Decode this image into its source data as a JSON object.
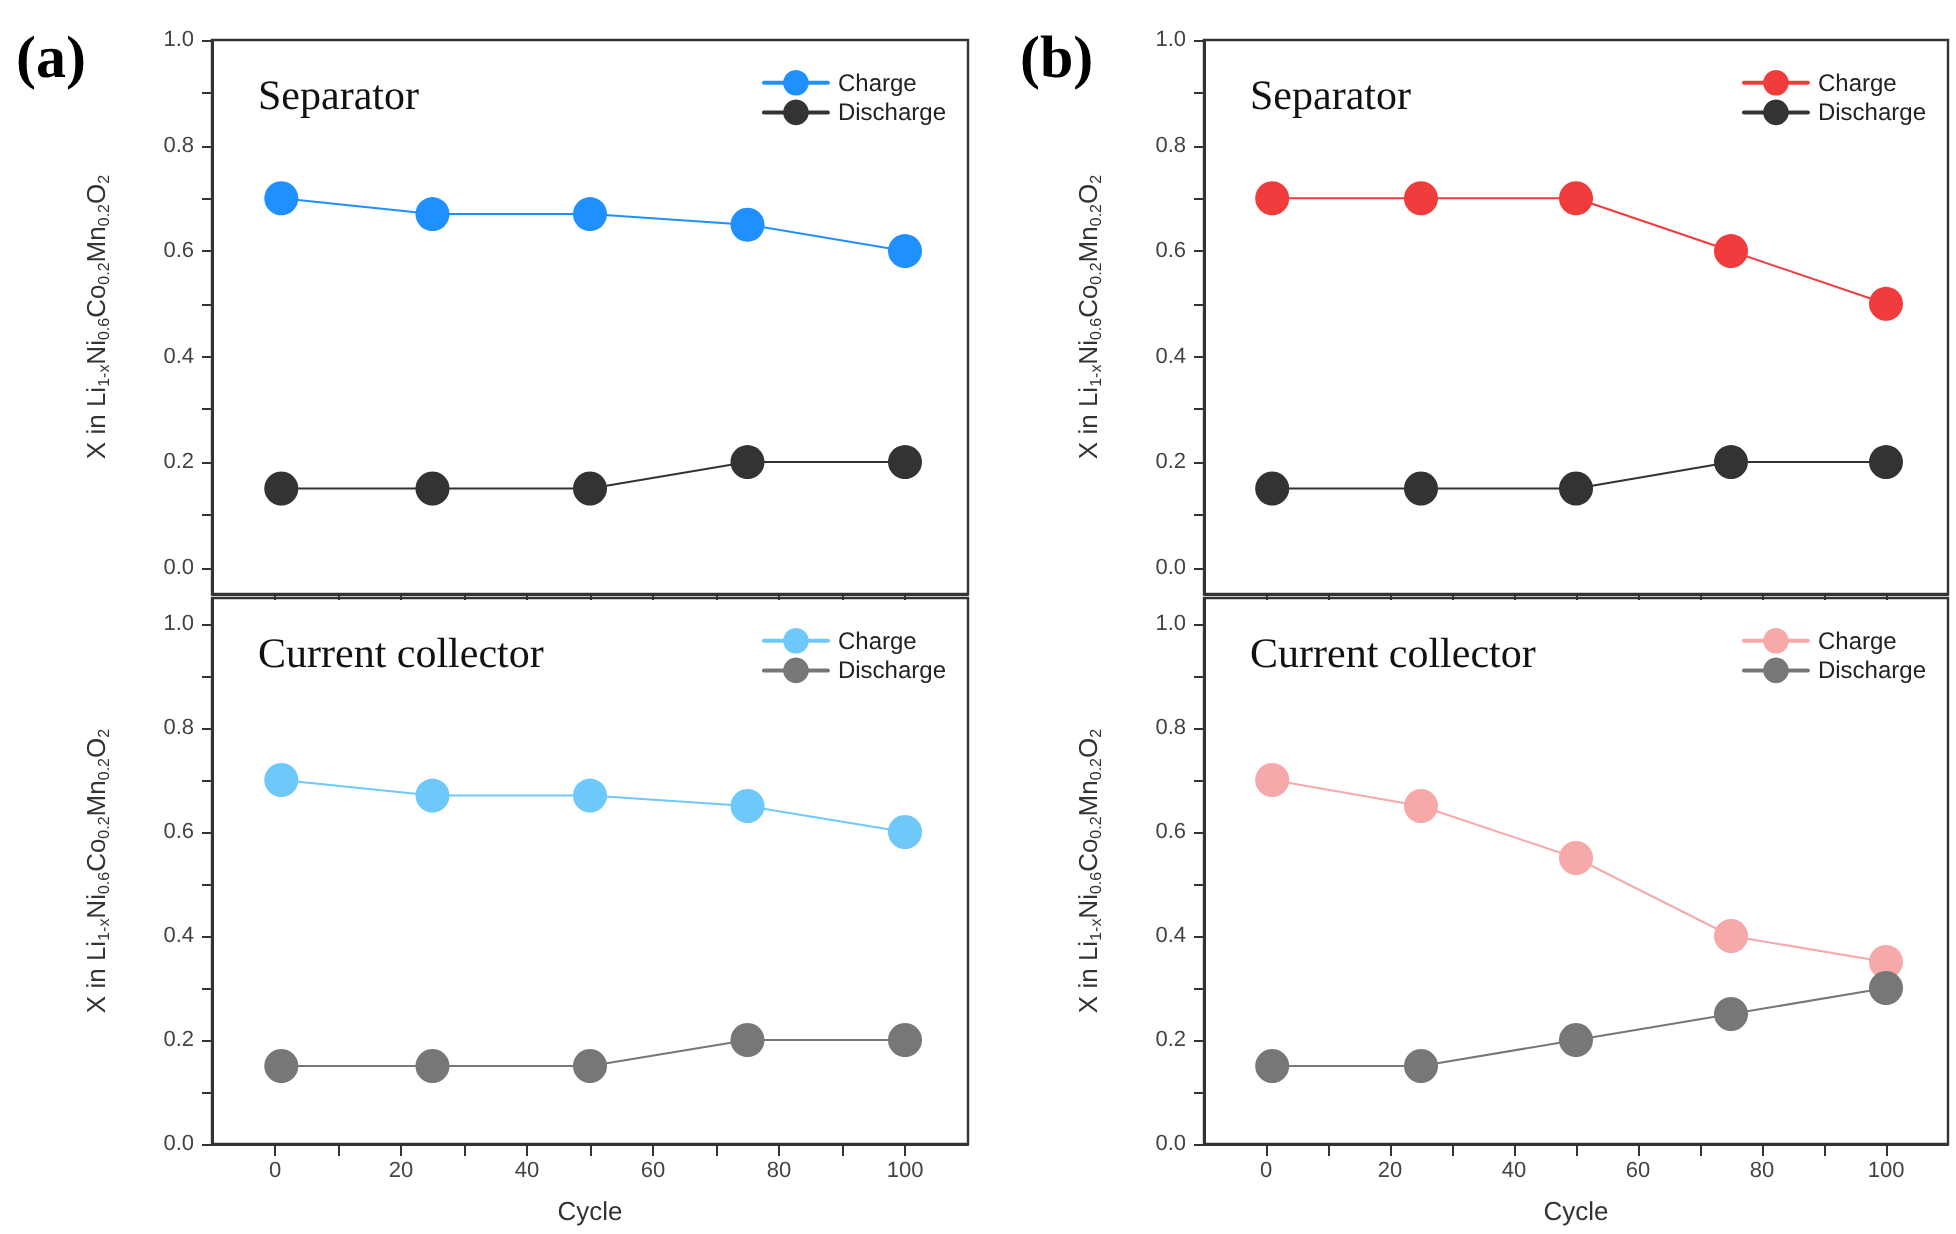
{
  "chart_data": [
    {
      "type": "line",
      "title": "Separator",
      "annotations": [
        "(a)"
      ],
      "ylabel": "X in Li$_{1-x}$Ni$_{0.6}$Co$_{0.2}$Mn$_{0.2}$O$_{2}$",
      "x": [
        1,
        25,
        50,
        75,
        100
      ],
      "xlim": [
        -10,
        110
      ],
      "xticks": [
        0,
        {
          "value": 10,
          "label": null
        },
        20,
        {
          "value": 30,
          "label": null
        },
        40,
        {
          "value": 50,
          "label": null
        },
        60,
        {
          "value": 70,
          "label": null
        },
        80,
        {
          "value": 90,
          "label": null
        },
        100
      ],
      "ylim": [
        -0.05,
        1.0
      ],
      "yticks": [
        {
          "value": 0,
          "label": "0.0"
        },
        {
          "value": 0.1,
          "label": null
        },
        0.2,
        {
          "value": 0.3,
          "label": null
        },
        0.4,
        {
          "value": 0.5,
          "label": null
        },
        0.6,
        {
          "value": 0.7,
          "label": null
        },
        0.8,
        {
          "value": 0.9,
          "label": null
        },
        {
          "value": 1,
          "label": "1.0"
        }
      ],
      "tick_labels": "y",
      "legend": "top right",
      "marker": "circle",
      "line_style": "solid",
      "grid": false,
      "series": [
        {
          "name": "Charge",
          "color": "#1e90ff",
          "values": [
            0.7,
            0.67,
            0.67,
            0.65,
            0.6
          ]
        },
        {
          "name": "Discharge",
          "color": "#333333",
          "values": [
            0.15,
            0.15,
            0.15,
            0.2,
            0.2
          ]
        }
      ]
    },
    {
      "type": "line",
      "title": "Current collector",
      "xlabel": "Cycle",
      "ylabel": "X in Li$_{1-x}$Ni$_{0.6}$Co$_{0.2}$Mn$_{0.2}$O$_{2}$",
      "x": [
        1,
        25,
        50,
        75,
        100
      ],
      "xlim": [
        -10,
        110
      ],
      "xticks": [
        0,
        {
          "value": 10,
          "label": null
        },
        20,
        {
          "value": 30,
          "label": null
        },
        40,
        {
          "value": 50,
          "label": null
        },
        60,
        {
          "value": 70,
          "label": null
        },
        80,
        {
          "value": 90,
          "label": null
        },
        100
      ],
      "ylim": [
        0,
        1.05
      ],
      "yticks": [
        {
          "value": 0,
          "label": "0.0"
        },
        {
          "value": 0.1,
          "label": null
        },
        0.2,
        {
          "value": 0.3,
          "label": null
        },
        0.4,
        {
          "value": 0.5,
          "label": null
        },
        0.6,
        {
          "value": 0.7,
          "label": null
        },
        0.8,
        {
          "value": 0.9,
          "label": null
        },
        {
          "value": 1,
          "label": "1.0"
        }
      ],
      "legend": "top right",
      "marker": "circle",
      "line_style": "solid",
      "grid": false,
      "series": [
        {
          "name": "Charge",
          "color": "#6ec8fa",
          "values": [
            0.7,
            0.67,
            0.67,
            0.65,
            0.6
          ]
        },
        {
          "name": "Discharge",
          "color": "#777777",
          "values": [
            0.15,
            0.15,
            0.15,
            0.2,
            0.2
          ]
        }
      ]
    },
    {
      "type": "line",
      "title": "Separator",
      "annotations": [
        "(b)"
      ],
      "ylabel": "X in Li$_{1-x}$Ni$_{0.6}$Co$_{0.2}$Mn$_{0.2}$O$_{2}$",
      "x": [
        1,
        25,
        50,
        75,
        100
      ],
      "xlim": [
        -10,
        110
      ],
      "xticks": [
        0,
        {
          "value": 10,
          "label": null
        },
        20,
        {
          "value": 30,
          "label": null
        },
        40,
        {
          "value": 50,
          "label": null
        },
        60,
        {
          "value": 70,
          "label": null
        },
        80,
        {
          "value": 90,
          "label": null
        },
        100
      ],
      "ylim": [
        -0.05,
        1.0
      ],
      "yticks": [
        {
          "value": 0,
          "label": "0.0"
        },
        {
          "value": 0.1,
          "label": null
        },
        0.2,
        {
          "value": 0.3,
          "label": null
        },
        0.4,
        {
          "value": 0.5,
          "label": null
        },
        0.6,
        {
          "value": 0.7,
          "label": null
        },
        0.8,
        {
          "value": 0.9,
          "label": null
        },
        {
          "value": 1,
          "label": "1.0"
        }
      ],
      "tick_labels": "y",
      "legend": "top right",
      "marker": "circle",
      "line_style": "solid",
      "grid": false,
      "series": [
        {
          "name": "Charge",
          "color": "#f03c3c",
          "values": [
            0.7,
            0.7,
            0.7,
            0.6,
            0.5
          ]
        },
        {
          "name": "Discharge",
          "color": "#333333",
          "values": [
            0.15,
            0.15,
            0.15,
            0.2,
            0.2
          ]
        }
      ]
    },
    {
      "type": "line",
      "title": "Current collector",
      "xlabel": "Cycle",
      "ylabel": "X in Li$_{1-x}$Ni$_{0.6}$Co$_{0.2}$Mn$_{0.2}$O$_{2}$",
      "x": [
        1,
        25,
        50,
        75,
        100
      ],
      "xlim": [
        -10,
        110
      ],
      "xticks": [
        0,
        {
          "value": 10,
          "label": null
        },
        20,
        {
          "value": 30,
          "label": null
        },
        40,
        {
          "value": 50,
          "label": null
        },
        60,
        {
          "value": 70,
          "label": null
        },
        80,
        {
          "value": 90,
          "label": null
        },
        100
      ],
      "ylim": [
        0,
        1.05
      ],
      "yticks": [
        {
          "value": 0,
          "label": "0.0"
        },
        {
          "value": 0.1,
          "label": null
        },
        0.2,
        {
          "value": 0.3,
          "label": null
        },
        0.4,
        {
          "value": 0.5,
          "label": null
        },
        0.6,
        {
          "value": 0.7,
          "label": null
        },
        0.8,
        {
          "value": 0.9,
          "label": null
        },
        {
          "value": 1,
          "label": "1.0"
        }
      ],
      "legend": "top right",
      "marker": "circle",
      "line_style": "solid",
      "grid": false,
      "series": [
        {
          "name": "Charge",
          "color": "#f7a8a8",
          "values": [
            0.7,
            0.65,
            0.55,
            0.4,
            0.35
          ]
        },
        {
          "name": "Discharge",
          "color": "#777777",
          "values": [
            0.15,
            0.15,
            0.2,
            0.25,
            0.3
          ]
        }
      ]
    }
  ]
}
